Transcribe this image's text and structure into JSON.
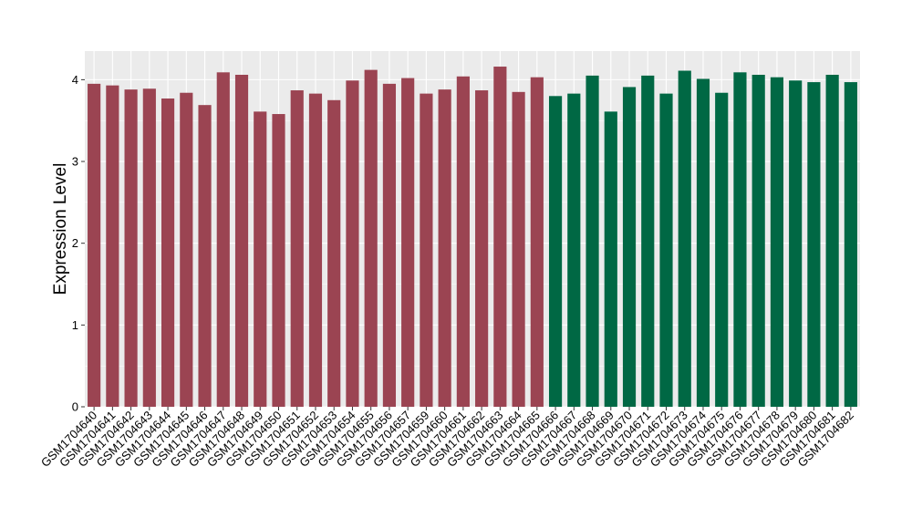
{
  "chart_data": {
    "type": "bar",
    "title": "",
    "xlabel": "",
    "ylabel": "Expression Level",
    "ylim": [
      0,
      4.35
    ],
    "yticks": [
      0,
      1,
      2,
      3,
      4
    ],
    "grid": true,
    "legend": "none",
    "colors": {
      "panel": "#ebebeb",
      "grid": "#ffffff",
      "group_a": "#9b4452",
      "group_b": "#006844"
    },
    "categories": [
      "GSM1704640",
      "GSM1704641",
      "GSM1704642",
      "GSM1704643",
      "GSM1704644",
      "GSM1704645",
      "GSM1704646",
      "GSM1704647",
      "GSM1704648",
      "GSM1704649",
      "GSM1704650",
      "GSM1704651",
      "GSM1704652",
      "GSM1704653",
      "GSM1704654",
      "GSM1704655",
      "GSM1704656",
      "GSM1704657",
      "GSM1704659",
      "GSM1704660",
      "GSM1704661",
      "GSM1704662",
      "GSM1704663",
      "GSM1704664",
      "GSM1704665",
      "GSM1704666",
      "GSM1704667",
      "GSM1704668",
      "GSM1704669",
      "GSM1704670",
      "GSM1704671",
      "GSM1704672",
      "GSM1704673",
      "GSM1704674",
      "GSM1704675",
      "GSM1704676",
      "GSM1704677",
      "GSM1704678",
      "GSM1704679",
      "GSM1704680",
      "GSM1704681",
      "GSM1704682"
    ],
    "values": [
      3.95,
      3.93,
      3.88,
      3.89,
      3.77,
      3.84,
      3.69,
      4.09,
      4.06,
      3.61,
      3.58,
      3.87,
      3.83,
      3.75,
      3.99,
      4.12,
      3.95,
      4.02,
      3.83,
      3.88,
      4.04,
      3.87,
      4.16,
      3.85,
      4.03,
      3.8,
      3.83,
      4.05,
      3.61,
      3.91,
      4.05,
      3.83,
      4.11,
      4.01,
      3.84,
      4.09,
      4.06,
      4.03,
      3.99,
      3.97,
      4.06,
      3.97
    ],
    "groups": [
      "a",
      "a",
      "a",
      "a",
      "a",
      "a",
      "a",
      "a",
      "a",
      "a",
      "a",
      "a",
      "a",
      "a",
      "a",
      "a",
      "a",
      "a",
      "a",
      "a",
      "a",
      "a",
      "a",
      "a",
      "a",
      "b",
      "b",
      "b",
      "b",
      "b",
      "b",
      "b",
      "b",
      "b",
      "b",
      "b",
      "b",
      "b",
      "b",
      "b",
      "b",
      "b"
    ]
  }
}
